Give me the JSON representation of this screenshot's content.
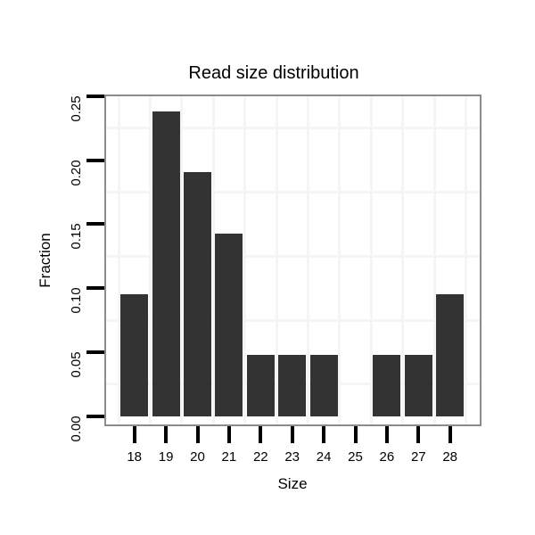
{
  "chart_data": {
    "type": "bar",
    "title": "Read size distribution",
    "xlabel": "Size",
    "ylabel": "Fraction",
    "categories": [
      "18",
      "19",
      "20",
      "21",
      "22",
      "23",
      "24",
      "25",
      "26",
      "27",
      "28"
    ],
    "values": [
      0.0952,
      0.2381,
      0.1905,
      0.1429,
      0.0476,
      0.0476,
      0.0476,
      0,
      0.0476,
      0.0476,
      0.0952
    ],
    "ylim": [
      0,
      0.25
    ],
    "ytick_labels": [
      "0.00",
      "0.05",
      "0.10",
      "0.15",
      "0.20",
      "0.25"
    ],
    "ytick_values": [
      0,
      0.05,
      0.1,
      0.15,
      0.2,
      0.25
    ],
    "minor_grid_y": [
      0.025,
      0.075,
      0.125,
      0.175,
      0.225
    ],
    "grid": "minor gridlines only (light grey), major gridlines white/invisible",
    "legend": "none",
    "colors": {
      "bar": "#333333",
      "panel_border": "#8c8c8c",
      "grid_minor": "#f5f5f5",
      "tick": "#000000",
      "text": "#000000",
      "background": "#ffffff"
    }
  }
}
